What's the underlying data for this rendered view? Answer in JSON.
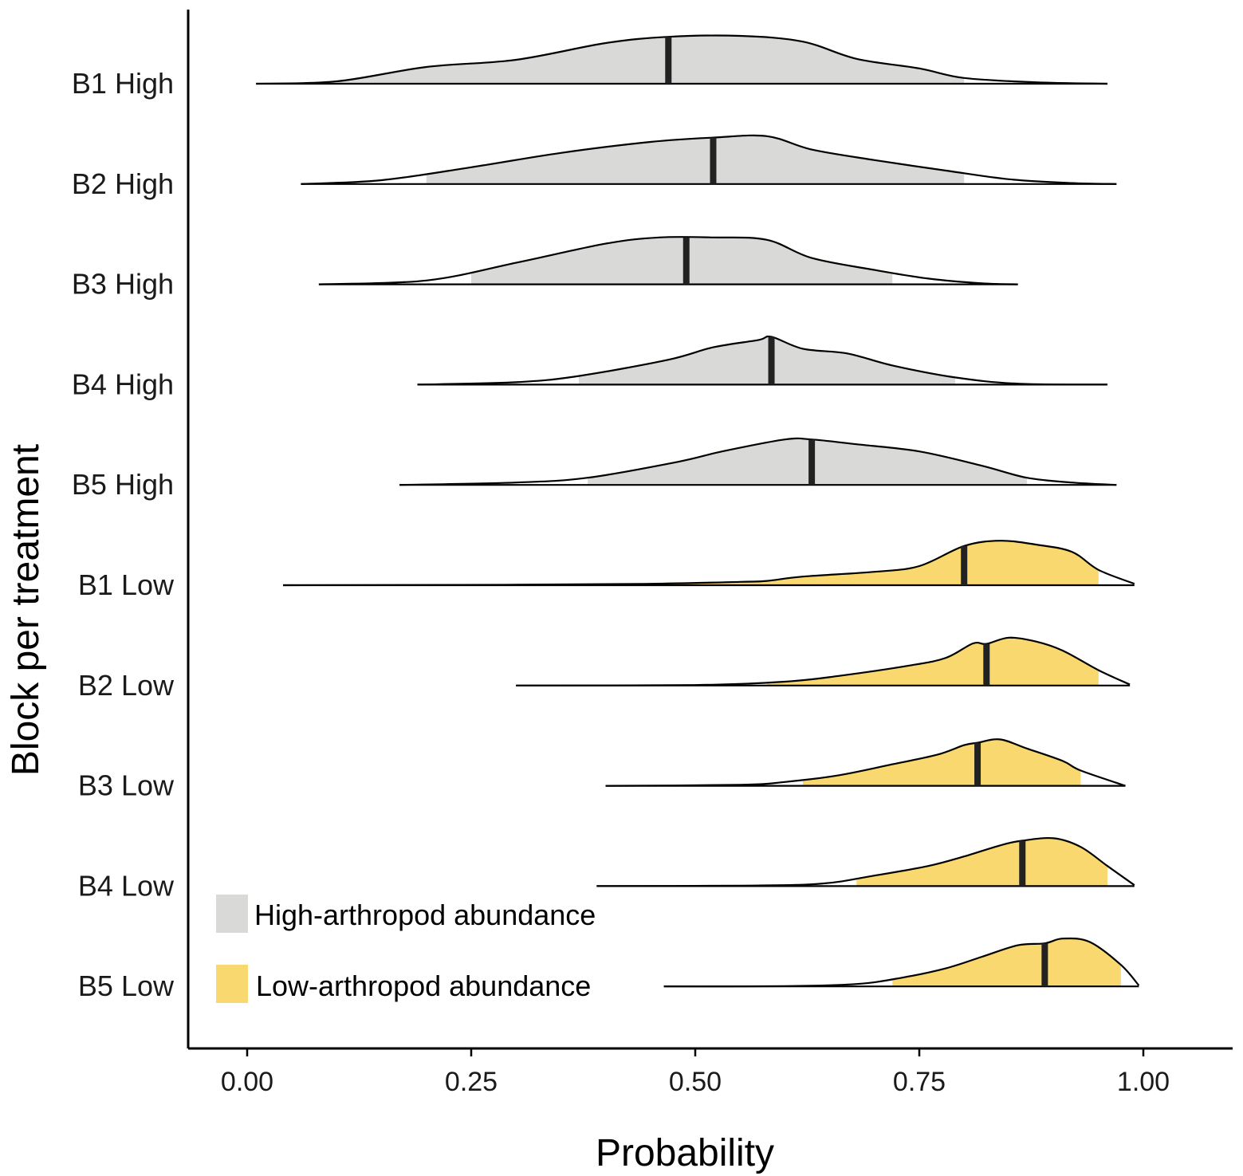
{
  "chart_data": {
    "type": "ridgeline",
    "xlabel": "Probability",
    "ylabel": "Block per treatment",
    "xlim": [
      0,
      1
    ],
    "x_ticks": [
      "0.00",
      "0.25",
      "0.50",
      "0.75",
      "1.00"
    ],
    "categories": [
      "B1 High",
      "B2 High",
      "B3 High",
      "B4 High",
      "B5 High",
      "B1 Low",
      "B2 Low",
      "B3 Low",
      "B4 Low",
      "B5 Low"
    ],
    "legend": {
      "position": "bottom-left",
      "items": [
        {
          "label": "High-arthropod abundance",
          "color": "#d9d9d7"
        },
        {
          "label": "Low-arthropod abundance",
          "color": "#f9d870"
        }
      ]
    },
    "colors": {
      "high": "#d9d9d7",
      "low": "#f9d870",
      "outline": "#000000",
      "median": "#222222"
    },
    "series": [
      {
        "category": "B1 High",
        "group": "high",
        "range": [
          0.01,
          0.96
        ],
        "interval": [
          0.1,
          0.8
        ],
        "median": 0.47,
        "density": [
          [
            0.01,
            0
          ],
          [
            0.1,
            0.05
          ],
          [
            0.2,
            0.35
          ],
          [
            0.3,
            0.5
          ],
          [
            0.4,
            0.85
          ],
          [
            0.47,
            0.98
          ],
          [
            0.55,
            1.0
          ],
          [
            0.62,
            0.88
          ],
          [
            0.68,
            0.52
          ],
          [
            0.75,
            0.32
          ],
          [
            0.8,
            0.12
          ],
          [
            0.88,
            0.03
          ],
          [
            0.96,
            0
          ]
        ]
      },
      {
        "category": "B2 High",
        "group": "high",
        "range": [
          0.06,
          0.97
        ],
        "interval": [
          0.2,
          0.8
        ],
        "median": 0.52,
        "density": [
          [
            0.06,
            0
          ],
          [
            0.15,
            0.08
          ],
          [
            0.25,
            0.35
          ],
          [
            0.35,
            0.65
          ],
          [
            0.45,
            0.88
          ],
          [
            0.52,
            0.97
          ],
          [
            0.58,
            1.0
          ],
          [
            0.63,
            0.72
          ],
          [
            0.7,
            0.5
          ],
          [
            0.78,
            0.28
          ],
          [
            0.85,
            0.1
          ],
          [
            0.92,
            0.02
          ],
          [
            0.97,
            0
          ]
        ]
      },
      {
        "category": "B3 High",
        "group": "high",
        "range": [
          0.08,
          0.86
        ],
        "interval": [
          0.25,
          0.72
        ],
        "median": 0.49,
        "density": [
          [
            0.08,
            0
          ],
          [
            0.2,
            0.08
          ],
          [
            0.3,
            0.45
          ],
          [
            0.4,
            0.85
          ],
          [
            0.46,
            0.98
          ],
          [
            0.52,
            0.98
          ],
          [
            0.58,
            0.93
          ],
          [
            0.63,
            0.55
          ],
          [
            0.7,
            0.3
          ],
          [
            0.76,
            0.12
          ],
          [
            0.82,
            0.02
          ],
          [
            0.86,
            0
          ]
        ]
      },
      {
        "category": "B4 High",
        "group": "high",
        "range": [
          0.19,
          0.96
        ],
        "interval": [
          0.37,
          0.79
        ],
        "median": 0.585,
        "density": [
          [
            0.19,
            0
          ],
          [
            0.3,
            0.05
          ],
          [
            0.37,
            0.18
          ],
          [
            0.47,
            0.52
          ],
          [
            0.52,
            0.78
          ],
          [
            0.57,
            0.93
          ],
          [
            0.585,
            1.0
          ],
          [
            0.62,
            0.75
          ],
          [
            0.67,
            0.65
          ],
          [
            0.72,
            0.4
          ],
          [
            0.79,
            0.15
          ],
          [
            0.86,
            0.02
          ],
          [
            0.96,
            0
          ]
        ]
      },
      {
        "category": "B5 High",
        "group": "high",
        "range": [
          0.17,
          0.97
        ],
        "interval": [
          0.38,
          0.87
        ],
        "median": 0.63,
        "density": [
          [
            0.17,
            0
          ],
          [
            0.3,
            0.05
          ],
          [
            0.38,
            0.15
          ],
          [
            0.48,
            0.48
          ],
          [
            0.53,
            0.7
          ],
          [
            0.6,
            0.95
          ],
          [
            0.63,
            0.95
          ],
          [
            0.68,
            0.85
          ],
          [
            0.75,
            0.7
          ],
          [
            0.82,
            0.4
          ],
          [
            0.87,
            0.15
          ],
          [
            0.92,
            0.05
          ],
          [
            0.97,
            0
          ]
        ]
      },
      {
        "category": "B1 Low",
        "group": "low",
        "range": [
          0.04,
          0.99
        ],
        "interval": [
          0.3,
          0.95
        ],
        "median": 0.8,
        "density": [
          [
            0.04,
            0
          ],
          [
            0.3,
            0.01
          ],
          [
            0.45,
            0.03
          ],
          [
            0.55,
            0.07
          ],
          [
            0.58,
            0.09
          ],
          [
            0.62,
            0.18
          ],
          [
            0.7,
            0.28
          ],
          [
            0.75,
            0.4
          ],
          [
            0.8,
            0.82
          ],
          [
            0.84,
            0.93
          ],
          [
            0.88,
            0.85
          ],
          [
            0.92,
            0.7
          ],
          [
            0.95,
            0.32
          ],
          [
            0.99,
            0.03
          ]
        ]
      },
      {
        "category": "B2 Low",
        "group": "low",
        "range": [
          0.3,
          0.985
        ],
        "interval": [
          0.58,
          0.95
        ],
        "median": 0.825,
        "density": [
          [
            0.3,
            0
          ],
          [
            0.5,
            0.01
          ],
          [
            0.6,
            0.08
          ],
          [
            0.66,
            0.2
          ],
          [
            0.74,
            0.42
          ],
          [
            0.78,
            0.58
          ],
          [
            0.81,
            0.88
          ],
          [
            0.825,
            0.87
          ],
          [
            0.85,
            1.0
          ],
          [
            0.88,
            0.92
          ],
          [
            0.91,
            0.73
          ],
          [
            0.95,
            0.32
          ],
          [
            0.985,
            0.02
          ]
        ]
      },
      {
        "category": "B3 Low",
        "group": "low",
        "range": [
          0.4,
          0.98
        ],
        "interval": [
          0.62,
          0.93
        ],
        "median": 0.815,
        "density": [
          [
            0.4,
            0
          ],
          [
            0.55,
            0.02
          ],
          [
            0.6,
            0.08
          ],
          [
            0.66,
            0.22
          ],
          [
            0.72,
            0.45
          ],
          [
            0.77,
            0.65
          ],
          [
            0.8,
            0.85
          ],
          [
            0.815,
            0.9
          ],
          [
            0.84,
            0.97
          ],
          [
            0.87,
            0.78
          ],
          [
            0.91,
            0.52
          ],
          [
            0.93,
            0.32
          ],
          [
            0.98,
            0
          ]
        ]
      },
      {
        "category": "B4 Low",
        "group": "low",
        "range": [
          0.39,
          0.99
        ],
        "interval": [
          0.68,
          0.96
        ],
        "median": 0.865,
        "density": [
          [
            0.39,
            0
          ],
          [
            0.55,
            0.01
          ],
          [
            0.64,
            0.05
          ],
          [
            0.7,
            0.22
          ],
          [
            0.76,
            0.42
          ],
          [
            0.8,
            0.62
          ],
          [
            0.84,
            0.85
          ],
          [
            0.865,
            0.95
          ],
          [
            0.9,
            1.0
          ],
          [
            0.93,
            0.82
          ],
          [
            0.96,
            0.42
          ],
          [
            0.99,
            0.02
          ]
        ]
      },
      {
        "category": "B5 Low",
        "group": "low",
        "range": [
          0.465,
          0.995
        ],
        "interval": [
          0.72,
          0.975
        ],
        "median": 0.89,
        "density": [
          [
            0.465,
            0
          ],
          [
            0.6,
            0.005
          ],
          [
            0.68,
            0.05
          ],
          [
            0.73,
            0.18
          ],
          [
            0.78,
            0.38
          ],
          [
            0.82,
            0.62
          ],
          [
            0.86,
            0.86
          ],
          [
            0.89,
            0.9
          ],
          [
            0.91,
            1.0
          ],
          [
            0.94,
            0.93
          ],
          [
            0.975,
            0.45
          ],
          [
            0.995,
            0.02
          ]
        ]
      }
    ]
  }
}
